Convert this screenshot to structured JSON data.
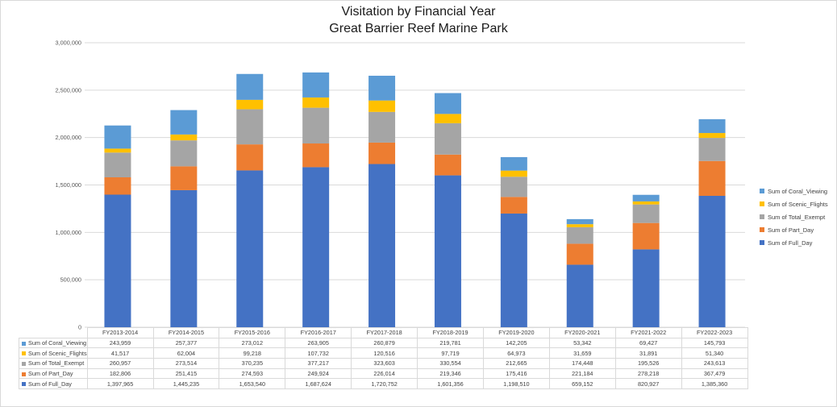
{
  "chart_data": {
    "type": "bar",
    "stacked": true,
    "title": "Visitation by Financial Year",
    "subtitle": "Great Barrier Reef Marine Park",
    "xlabel": "",
    "ylabel": "",
    "ylim": [
      0,
      3000000
    ],
    "yticks": [
      "0",
      "500,000",
      "1,000,000",
      "1,500,000",
      "2,000,000",
      "2,500,000",
      "3,000,000"
    ],
    "grid": true,
    "legend": "right",
    "categories": [
      "FY2013-2014",
      "FY2014-2015",
      "FY2015-2016",
      "FY2016-2017",
      "FY2017-2018",
      "FY2018-2019",
      "FY2019-2020",
      "FY2020-2021",
      "FY2021-2022",
      "FY2022-2023"
    ],
    "series": [
      {
        "name": "Sum of Full_Day",
        "color": "#4472c4",
        "values": [
          1397965,
          1445235,
          1653540,
          1687624,
          1720752,
          1601356,
          1198510,
          659152,
          820927,
          1385360
        ],
        "labels": [
          "1,397,965",
          "1,445,235",
          "1,653,540",
          "1,687,624",
          "1,720,752",
          "1,601,356",
          "1,198,510",
          "659,152",
          "820,927",
          "1,385,360"
        ]
      },
      {
        "name": "Sum of Part_Day",
        "color": "#ed7d31",
        "values": [
          182806,
          251415,
          274593,
          249924,
          226014,
          219346,
          175416,
          221184,
          278218,
          367479
        ],
        "labels": [
          "182,806",
          "251,415",
          "274,593",
          "249,924",
          "226,014",
          "219,346",
          "175,416",
          "221,184",
          "278,218",
          "367,479"
        ]
      },
      {
        "name": "Sum of Total_Exempt",
        "color": "#a5a5a5",
        "values": [
          260957,
          273514,
          370235,
          377217,
          323603,
          330554,
          212665,
          174448,
          195526,
          243613
        ],
        "labels": [
          "260,957",
          "273,514",
          "370,235",
          "377,217",
          "323,603",
          "330,554",
          "212,665",
          "174,448",
          "195,526",
          "243,613"
        ]
      },
      {
        "name": "Sum of Scenic_Flights",
        "color": "#ffc000",
        "values": [
          41517,
          62004,
          99218,
          107732,
          120516,
          97719,
          64973,
          31659,
          31891,
          51340
        ],
        "labels": [
          "41,517",
          "62,004",
          "99,218",
          "107,732",
          "120,516",
          "97,719",
          "64,973",
          "31,659",
          "31,891",
          "51,340"
        ]
      },
      {
        "name": "Sum of Coral_Viewing",
        "color": "#5b9bd5",
        "values": [
          243959,
          257377,
          273012,
          263905,
          260879,
          219781,
          142205,
          53342,
          69427,
          145793
        ],
        "labels": [
          "243,959",
          "257,377",
          "273,012",
          "263,905",
          "260,879",
          "219,781",
          "142,205",
          "53,342",
          "69,427",
          "145,793"
        ]
      }
    ]
  }
}
